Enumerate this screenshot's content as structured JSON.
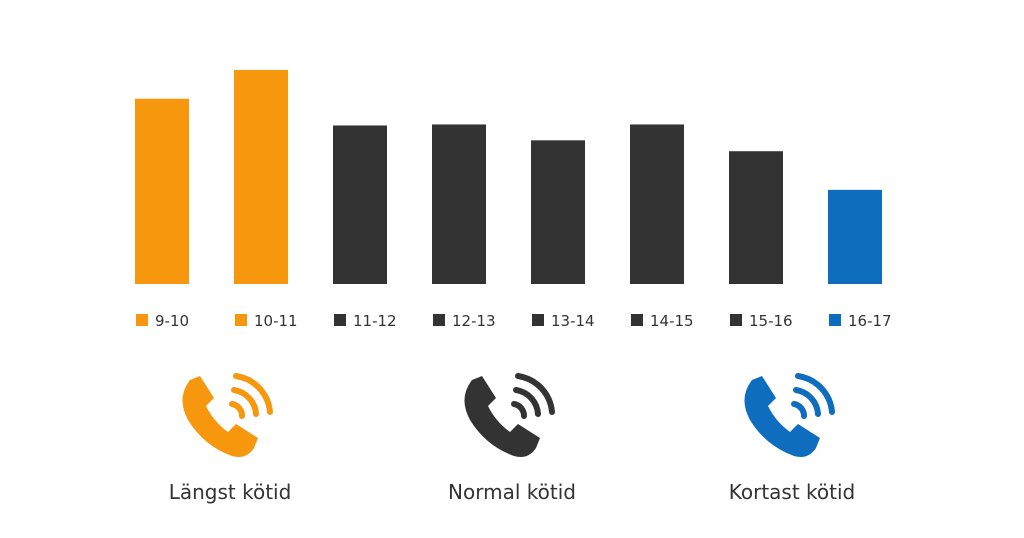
{
  "chart_data": {
    "type": "bar",
    "categories": [
      "9-10",
      "10-11",
      "11-12",
      "12-13",
      "13-14",
      "14-15",
      "15-16",
      "16-17"
    ],
    "values": [
      187,
      216,
      160,
      161,
      145,
      161,
      134,
      95
    ],
    "ylim": [
      0,
      220
    ],
    "bar_colors": [
      "#F7970E",
      "#F7970E",
      "#333333",
      "#333333",
      "#333333",
      "#333333",
      "#333333",
      "#0E6DBF"
    ],
    "grid": false,
    "legend": "bottom"
  },
  "legend": {
    "items": [
      {
        "label": "Längst kötid",
        "color": "#F7970E",
        "icon": "phone-icon"
      },
      {
        "label": "Normal kötid",
        "color": "#333333",
        "icon": "phone-icon"
      },
      {
        "label": "Kortast kötid",
        "color": "#0E6DBF",
        "icon": "phone-icon"
      }
    ]
  }
}
